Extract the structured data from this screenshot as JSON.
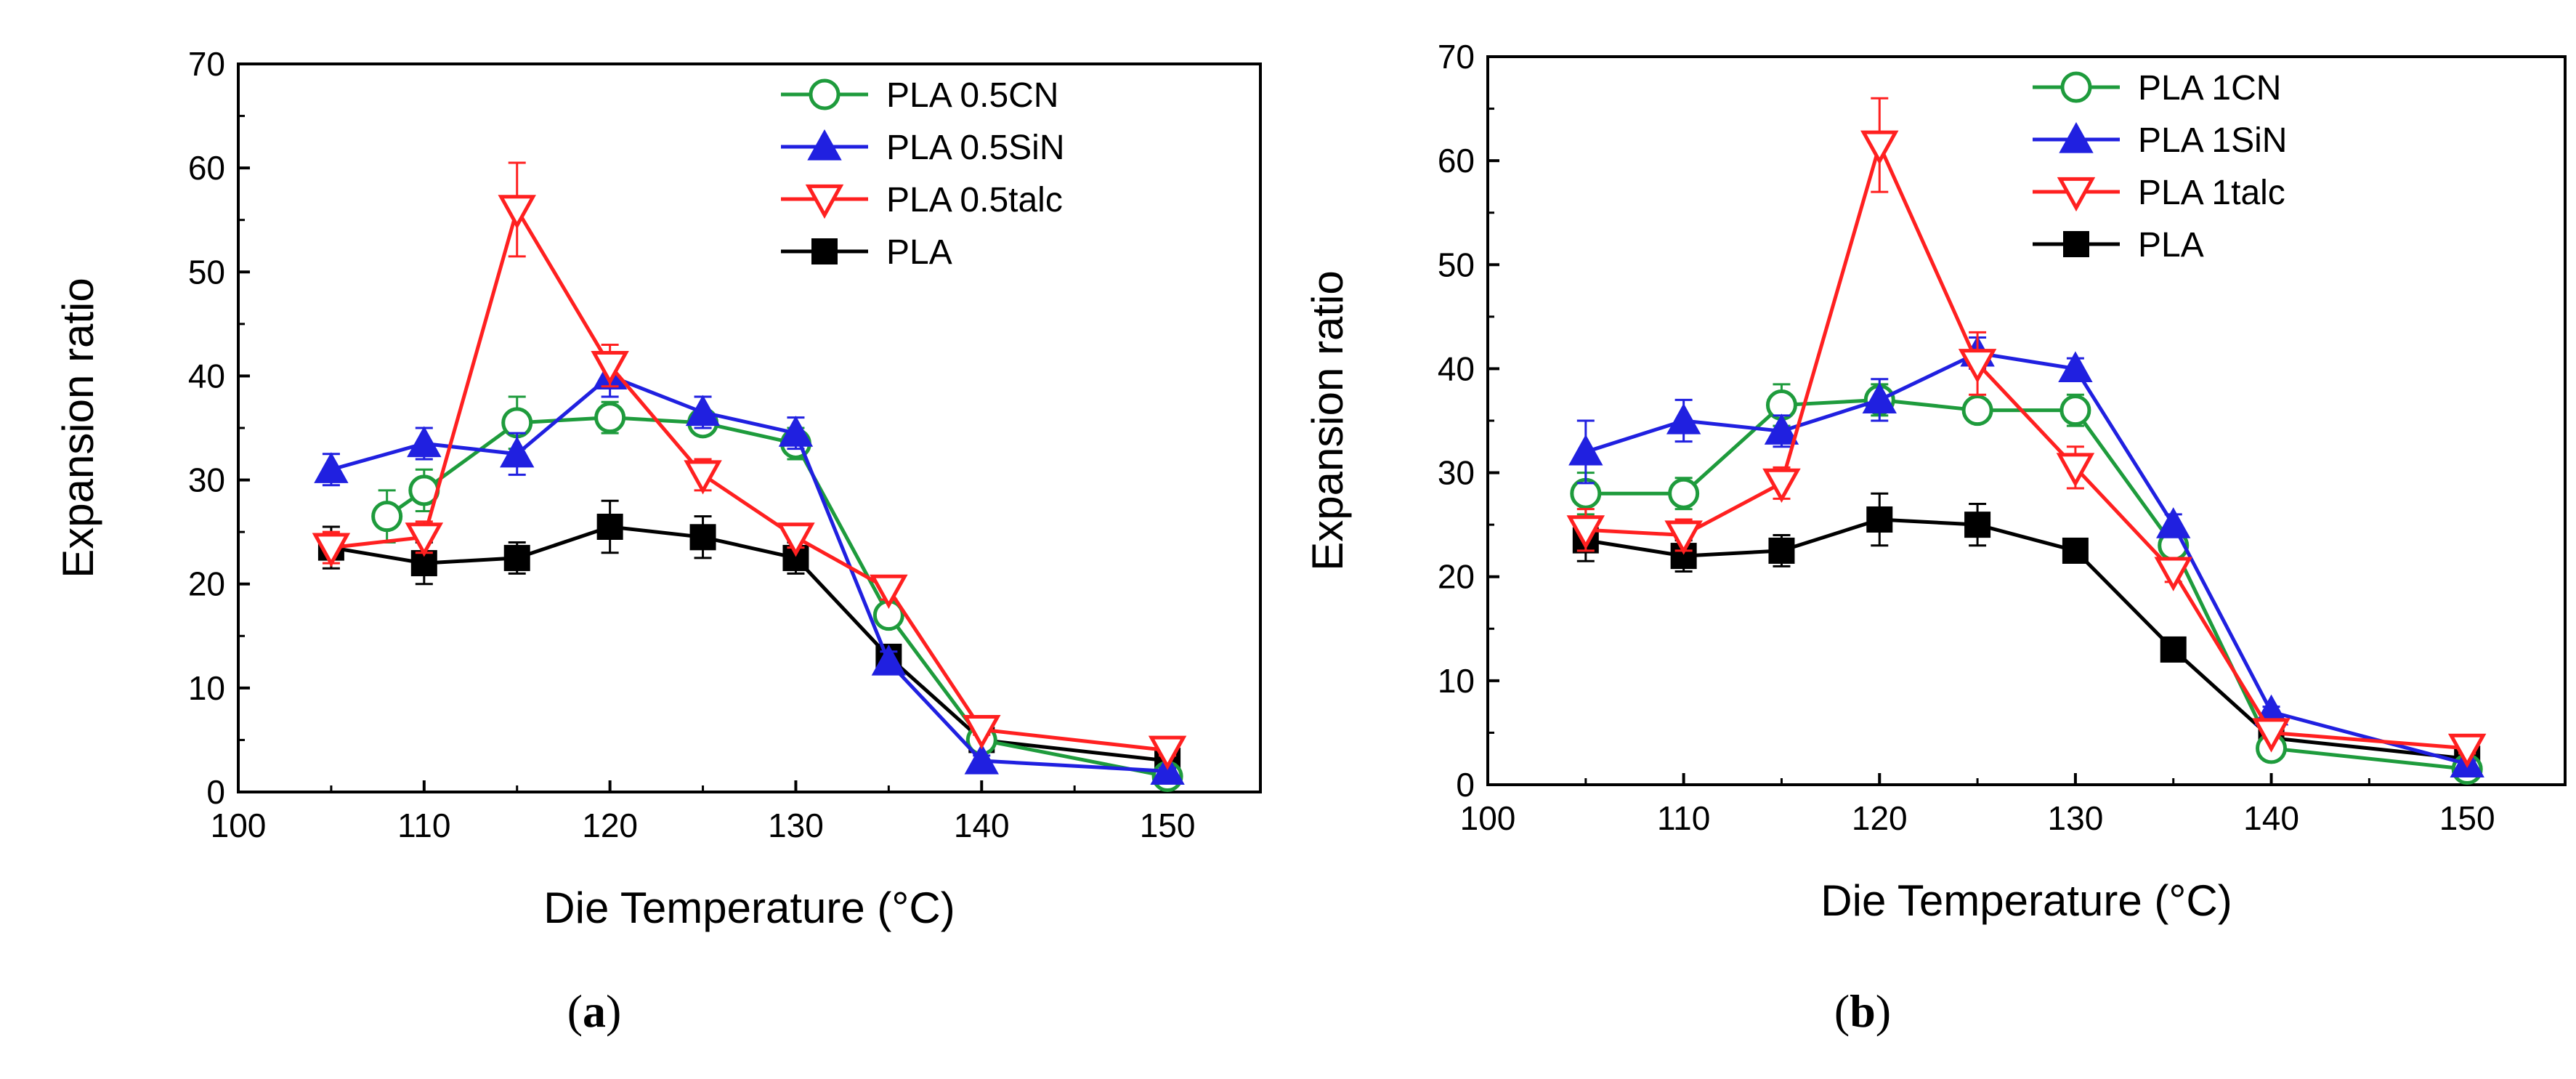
{
  "chart_data": [
    {
      "type": "line",
      "panel": "a",
      "panel_label": "a",
      "xlabel": "Die Temperature (°C)",
      "ylabel": "Expansion ratio",
      "xlim": [
        100,
        155
      ],
      "ylim": [
        0,
        70
      ],
      "xticks": [
        100,
        110,
        120,
        130,
        140,
        150
      ],
      "yticks": [
        0,
        10,
        20,
        30,
        40,
        50,
        60,
        70
      ],
      "legend_position": "top-right",
      "series": [
        {
          "name": "PLA 0.5CN",
          "color": "#1e9b3c",
          "marker": "circle-open",
          "x": [
            108,
            110,
            115,
            120,
            125,
            130,
            135,
            140,
            150
          ],
          "y": [
            26.5,
            29,
            35.5,
            36,
            35.5,
            33.5,
            17,
            5,
            1.5
          ],
          "err": [
            2.5,
            2,
            2.5,
            1.5,
            1,
            1.5,
            1,
            0.5,
            0.5
          ]
        },
        {
          "name": "PLA 0.5SiN",
          "color": "#2020e0",
          "marker": "triangle-up-filled",
          "x": [
            105,
            110,
            115,
            120,
            125,
            130,
            135,
            140,
            150
          ],
          "y": [
            31,
            33.5,
            32.5,
            40,
            36.5,
            34.5,
            12.5,
            3,
            2
          ],
          "err": [
            1.5,
            1.5,
            2,
            2,
            1.5,
            1.5,
            1,
            0.5,
            0.3
          ]
        },
        {
          "name": "PLA 0.5talc",
          "color": "#ff2020",
          "marker": "triangle-down-open",
          "x": [
            105,
            110,
            115,
            120,
            125,
            130,
            135,
            140,
            150
          ],
          "y": [
            23.5,
            24.5,
            56,
            41,
            30.5,
            24.5,
            19.5,
            6,
            4
          ],
          "err": [
            1.5,
            1.5,
            4.5,
            2,
            1.5,
            1,
            1,
            0.5,
            0.5
          ]
        },
        {
          "name": "PLA",
          "color": "#000000",
          "marker": "square-filled",
          "x": [
            105,
            110,
            115,
            120,
            125,
            130,
            135,
            140,
            150
          ],
          "y": [
            23.5,
            22,
            22.5,
            25.5,
            24.5,
            22.5,
            13,
            5,
            3
          ],
          "err": [
            2,
            2,
            1.5,
            2.5,
            2,
            1.5,
            1,
            0.5,
            0.5
          ]
        }
      ]
    },
    {
      "type": "line",
      "panel": "b",
      "panel_label": "b",
      "xlabel": "Die Temperature (°C)",
      "ylabel": "Expansion ratio",
      "xlim": [
        100,
        155
      ],
      "ylim": [
        0,
        70
      ],
      "xticks": [
        100,
        110,
        120,
        130,
        140,
        150
      ],
      "yticks": [
        0,
        10,
        20,
        30,
        40,
        50,
        60,
        70
      ],
      "legend_position": "top-right",
      "series": [
        {
          "name": "PLA 1CN",
          "color": "#1e9b3c",
          "marker": "circle-open",
          "x": [
            105,
            110,
            115,
            120,
            125,
            130,
            135,
            140,
            150
          ],
          "y": [
            28,
            28,
            36.5,
            37,
            36,
            36,
            23,
            3.5,
            1.5
          ],
          "err": [
            2,
            1.5,
            2,
            1.5,
            1,
            1.5,
            1,
            0.5,
            0.3
          ]
        },
        {
          "name": "PLA 1SiN",
          "color": "#2020e0",
          "marker": "triangle-up-filled",
          "x": [
            105,
            110,
            115,
            120,
            125,
            130,
            135,
            140,
            150
          ],
          "y": [
            32,
            35,
            34,
            37,
            41.5,
            40,
            25,
            7,
            2
          ],
          "err": [
            3,
            2,
            1.5,
            2,
            1.5,
            1,
            1,
            0.5,
            0.3
          ]
        },
        {
          "name": "PLA 1talc",
          "color": "#ff2020",
          "marker": "triangle-down-open",
          "x": [
            105,
            110,
            115,
            120,
            125,
            130,
            135,
            140,
            150
          ],
          "y": [
            24.5,
            24,
            29,
            61.5,
            40.5,
            30.5,
            20.5,
            5,
            3.5
          ],
          "err": [
            2,
            1.5,
            1.5,
            4.5,
            3,
            2,
            1,
            0.5,
            0.5
          ]
        },
        {
          "name": "PLA",
          "color": "#000000",
          "marker": "square-filled",
          "x": [
            105,
            110,
            115,
            120,
            125,
            130,
            135,
            140,
            150
          ],
          "y": [
            23.5,
            22,
            22.5,
            25.5,
            25,
            22.5,
            13,
            4.5,
            2.5
          ],
          "err": [
            2,
            1.5,
            1.5,
            2.5,
            2,
            1,
            0.5,
            0.5,
            0.3
          ]
        }
      ]
    }
  ]
}
